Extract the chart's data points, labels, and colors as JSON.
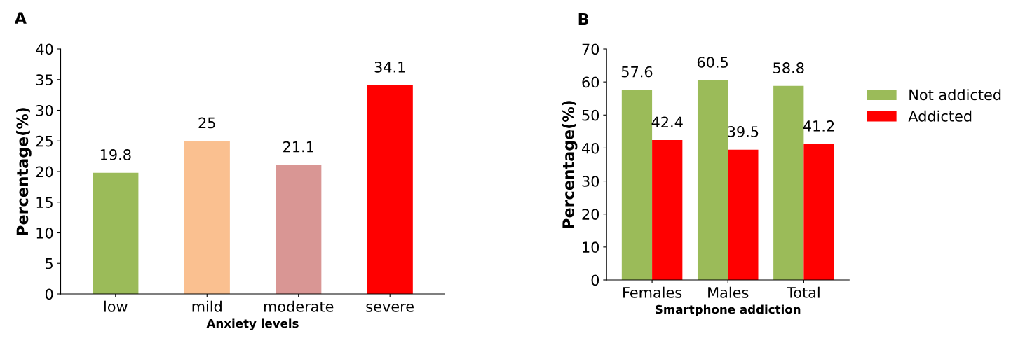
{
  "chart_data": [
    {
      "type": "bar",
      "title": "A",
      "xlabel": "Anxiety levels",
      "ylabel": "Percentage(%)",
      "categories": [
        "low",
        "mild",
        "moderate",
        "severe"
      ],
      "values": [
        19.8,
        25,
        21.1,
        34.1
      ],
      "colors": [
        "#9bbb59",
        "#fac090",
        "#d99694",
        "#ff0000"
      ],
      "ylim": [
        0,
        40
      ],
      "yticks": [
        0,
        5,
        10,
        15,
        20,
        25,
        30,
        35,
        40
      ],
      "data_labels": true,
      "grid": false,
      "legend": false
    },
    {
      "type": "bar",
      "title": "B",
      "xlabel": "Smartphone addiction",
      "ylabel": "Percentage(%)",
      "categories": [
        "Females",
        "Males",
        "Total"
      ],
      "series": [
        {
          "name": "Not addicted",
          "color": "#9bbb59",
          "values": [
            57.6,
            60.5,
            58.8
          ]
        },
        {
          "name": "Addicted",
          "color": "#ff0000",
          "values": [
            42.4,
            39.5,
            41.2
          ]
        }
      ],
      "ylim": [
        0,
        70
      ],
      "yticks": [
        0,
        10,
        20,
        30,
        40,
        50,
        60,
        70
      ],
      "data_labels": true,
      "grid": false,
      "legend": "right"
    }
  ]
}
